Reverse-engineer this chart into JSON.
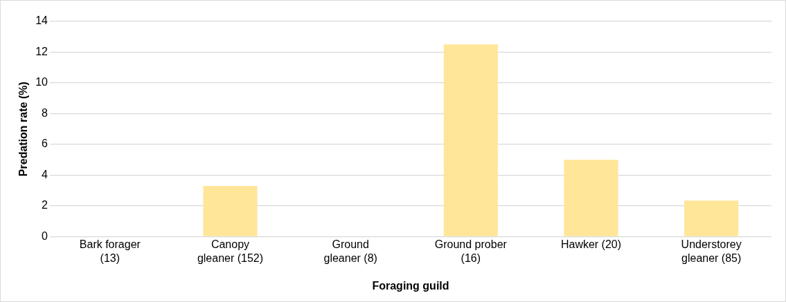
{
  "chart_data": {
    "type": "bar",
    "xlabel": "Foraging guild",
    "ylabel": "Predation rate (%)",
    "categories": [
      "Bark forager (13)",
      "Canopy gleaner (152)",
      "Ground gleaner (8)",
      "Ground prober (16)",
      "Hawker (20)",
      "Understorey gleaner (85)"
    ],
    "values": [
      0,
      3.3,
      0,
      12.5,
      5,
      2.35
    ],
    "color": "#ffe699",
    "ylim": [
      0,
      14
    ],
    "yticks": [
      0,
      2,
      4,
      6,
      8,
      10,
      12,
      14
    ],
    "grid": "y",
    "legend": false
  }
}
